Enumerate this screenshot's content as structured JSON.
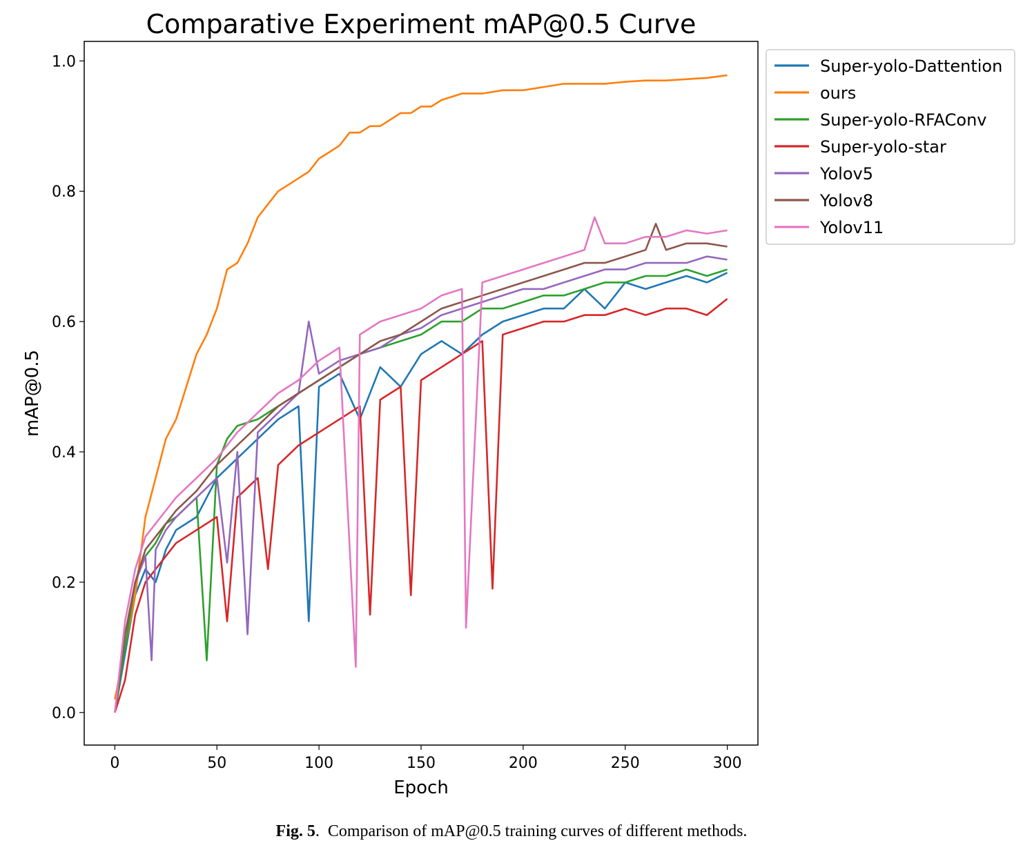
{
  "caption": {
    "fig_label": "Fig. 5",
    "text": "Comparison of mAP@0.5 training curves of different methods."
  },
  "chart_data": {
    "type": "line",
    "title": "Comparative Experiment mAP@0.5 Curve",
    "xlabel": "Epoch",
    "ylabel": "mAP@0.5",
    "xlim": [
      -15,
      315
    ],
    "ylim": [
      -0.05,
      1.03
    ],
    "xticks": [
      0,
      50,
      100,
      150,
      200,
      250,
      300
    ],
    "yticks": [
      0.0,
      0.2,
      0.4,
      0.6,
      0.8,
      1.0
    ],
    "xtick_labels": [
      "0",
      "50",
      "100",
      "150",
      "200",
      "250",
      "300"
    ],
    "ytick_labels": [
      "0.0",
      "0.2",
      "0.4",
      "0.6",
      "0.8",
      "1.0"
    ],
    "grid": false,
    "legend_position": "outside-upper-right",
    "series": [
      {
        "name": "Super-yolo-Dattention",
        "color": "#1f77b4",
        "x": [
          0,
          5,
          10,
          15,
          20,
          25,
          30,
          40,
          50,
          60,
          70,
          80,
          90,
          95,
          100,
          110,
          120,
          130,
          140,
          150,
          160,
          170,
          180,
          190,
          200,
          210,
          220,
          230,
          240,
          250,
          260,
          270,
          280,
          290,
          300
        ],
        "y": [
          0.0,
          0.09,
          0.18,
          0.22,
          0.2,
          0.25,
          0.28,
          0.3,
          0.36,
          0.39,
          0.42,
          0.45,
          0.47,
          0.14,
          0.5,
          0.52,
          0.45,
          0.53,
          0.5,
          0.55,
          0.57,
          0.55,
          0.58,
          0.6,
          0.61,
          0.62,
          0.62,
          0.65,
          0.62,
          0.66,
          0.65,
          0.66,
          0.67,
          0.66,
          0.675
        ]
      },
      {
        "name": "ours",
        "color": "#ff7f0e",
        "x": [
          0,
          5,
          10,
          15,
          20,
          25,
          30,
          35,
          40,
          45,
          50,
          55,
          60,
          65,
          70,
          75,
          80,
          85,
          90,
          95,
          100,
          105,
          110,
          115,
          120,
          125,
          130,
          135,
          140,
          145,
          150,
          155,
          160,
          170,
          180,
          190,
          200,
          210,
          220,
          230,
          240,
          250,
          260,
          270,
          280,
          290,
          300
        ],
        "y": [
          0.02,
          0.1,
          0.18,
          0.3,
          0.36,
          0.42,
          0.45,
          0.5,
          0.55,
          0.58,
          0.62,
          0.68,
          0.69,
          0.72,
          0.76,
          0.78,
          0.8,
          0.81,
          0.82,
          0.83,
          0.85,
          0.86,
          0.87,
          0.89,
          0.89,
          0.9,
          0.9,
          0.91,
          0.92,
          0.92,
          0.93,
          0.93,
          0.94,
          0.95,
          0.95,
          0.955,
          0.955,
          0.96,
          0.965,
          0.965,
          0.965,
          0.968,
          0.97,
          0.97,
          0.972,
          0.974,
          0.978
        ]
      },
      {
        "name": "Super-yolo-RFAConv",
        "color": "#2ca02c",
        "x": [
          0,
          5,
          10,
          15,
          20,
          25,
          30,
          40,
          45,
          50,
          55,
          60,
          70,
          80,
          90,
          100,
          110,
          120,
          130,
          140,
          150,
          160,
          170,
          180,
          190,
          200,
          210,
          220,
          230,
          240,
          250,
          260,
          270,
          280,
          290,
          300
        ],
        "y": [
          0.0,
          0.1,
          0.2,
          0.24,
          0.26,
          0.29,
          0.3,
          0.33,
          0.08,
          0.38,
          0.42,
          0.44,
          0.45,
          0.47,
          0.49,
          0.51,
          0.53,
          0.55,
          0.56,
          0.57,
          0.58,
          0.6,
          0.6,
          0.62,
          0.62,
          0.63,
          0.64,
          0.64,
          0.65,
          0.66,
          0.66,
          0.67,
          0.67,
          0.68,
          0.67,
          0.68
        ]
      },
      {
        "name": "Super-yolo-star",
        "color": "#d62728",
        "x": [
          0,
          5,
          10,
          15,
          20,
          25,
          30,
          40,
          50,
          55,
          60,
          70,
          75,
          80,
          90,
          100,
          110,
          120,
          125,
          130,
          140,
          145,
          150,
          160,
          170,
          180,
          185,
          190,
          200,
          210,
          220,
          230,
          240,
          250,
          260,
          270,
          280,
          290,
          300
        ],
        "y": [
          0.0,
          0.05,
          0.15,
          0.2,
          0.22,
          0.24,
          0.26,
          0.28,
          0.3,
          0.14,
          0.33,
          0.36,
          0.22,
          0.38,
          0.41,
          0.43,
          0.45,
          0.47,
          0.15,
          0.48,
          0.5,
          0.18,
          0.51,
          0.53,
          0.55,
          0.57,
          0.19,
          0.58,
          0.59,
          0.6,
          0.6,
          0.61,
          0.61,
          0.62,
          0.61,
          0.62,
          0.62,
          0.61,
          0.635
        ]
      },
      {
        "name": "Yolov5",
        "color": "#9467bd",
        "x": [
          0,
          5,
          10,
          15,
          18,
          20,
          25,
          30,
          40,
          50,
          55,
          60,
          65,
          70,
          80,
          90,
          95,
          100,
          110,
          120,
          130,
          140,
          150,
          160,
          170,
          180,
          190,
          200,
          210,
          220,
          230,
          240,
          250,
          260,
          270,
          280,
          290,
          300
        ],
        "y": [
          0.0,
          0.12,
          0.2,
          0.24,
          0.08,
          0.25,
          0.28,
          0.3,
          0.33,
          0.36,
          0.23,
          0.4,
          0.12,
          0.43,
          0.46,
          0.49,
          0.6,
          0.52,
          0.54,
          0.55,
          0.56,
          0.58,
          0.59,
          0.61,
          0.62,
          0.63,
          0.64,
          0.65,
          0.65,
          0.66,
          0.67,
          0.68,
          0.68,
          0.69,
          0.69,
          0.69,
          0.7,
          0.695
        ]
      },
      {
        "name": "Yolov8",
        "color": "#8c564b",
        "x": [
          0,
          5,
          10,
          15,
          20,
          25,
          30,
          40,
          50,
          60,
          70,
          80,
          90,
          100,
          110,
          120,
          130,
          140,
          150,
          160,
          170,
          180,
          190,
          200,
          210,
          220,
          230,
          240,
          250,
          260,
          265,
          270,
          280,
          290,
          300
        ],
        "y": [
          0.0,
          0.12,
          0.2,
          0.25,
          0.27,
          0.29,
          0.31,
          0.34,
          0.38,
          0.41,
          0.44,
          0.47,
          0.49,
          0.51,
          0.53,
          0.55,
          0.57,
          0.58,
          0.6,
          0.62,
          0.63,
          0.64,
          0.65,
          0.66,
          0.67,
          0.68,
          0.69,
          0.69,
          0.7,
          0.71,
          0.75,
          0.71,
          0.72,
          0.72,
          0.715
        ]
      },
      {
        "name": "Yolov11",
        "color": "#e377c2",
        "x": [
          0,
          5,
          10,
          15,
          20,
          25,
          30,
          40,
          50,
          60,
          70,
          80,
          90,
          100,
          110,
          118,
          120,
          130,
          140,
          150,
          160,
          170,
          172,
          180,
          190,
          200,
          210,
          220,
          230,
          235,
          240,
          250,
          260,
          270,
          280,
          290,
          300
        ],
        "y": [
          0.0,
          0.14,
          0.22,
          0.27,
          0.29,
          0.31,
          0.33,
          0.36,
          0.39,
          0.43,
          0.46,
          0.49,
          0.51,
          0.54,
          0.56,
          0.07,
          0.58,
          0.6,
          0.61,
          0.62,
          0.64,
          0.65,
          0.13,
          0.66,
          0.67,
          0.68,
          0.69,
          0.7,
          0.71,
          0.76,
          0.72,
          0.72,
          0.73,
          0.73,
          0.74,
          0.735,
          0.74
        ]
      }
    ]
  }
}
